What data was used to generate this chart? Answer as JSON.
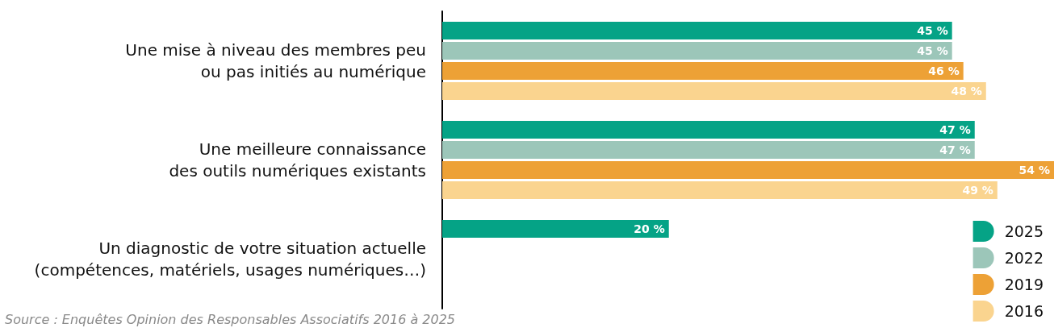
{
  "chart_data": {
    "type": "bar",
    "orientation": "horizontal",
    "categories": [
      "Une mise à niveau des membres peu\nou pas initiés au numérique",
      "Une meilleure connaissance\ndes outils numériques existants",
      "Un diagnostic de votre situation actuelle\n(compétences, matériels, usages numériques…)"
    ],
    "series": [
      {
        "name": "2025",
        "color": "#05a386",
        "values": [
          45,
          47,
          20
        ],
        "value_labels": [
          "45 %",
          "47 %",
          "20 %"
        ]
      },
      {
        "name": "2022",
        "color": "#9cc6b9",
        "values": [
          45,
          47,
          null
        ],
        "value_labels": [
          "45 %",
          "47 %",
          null
        ]
      },
      {
        "name": "2019",
        "color": "#eda136",
        "values": [
          46,
          54,
          null
        ],
        "value_labels": [
          "46 %",
          "54 %",
          null
        ]
      },
      {
        "name": "2016",
        "color": "#fad48f",
        "values": [
          48,
          49,
          null
        ],
        "value_labels": [
          "48 %",
          "49 %",
          null
        ]
      }
    ],
    "xlim": [
      0,
      54
    ],
    "tick_labels": "y",
    "grid": false,
    "legend": "bottom right",
    "annotations": [
      "Source : Enquêtes Opinion des Responsables Associatifs 2016 à 2025"
    ]
  }
}
